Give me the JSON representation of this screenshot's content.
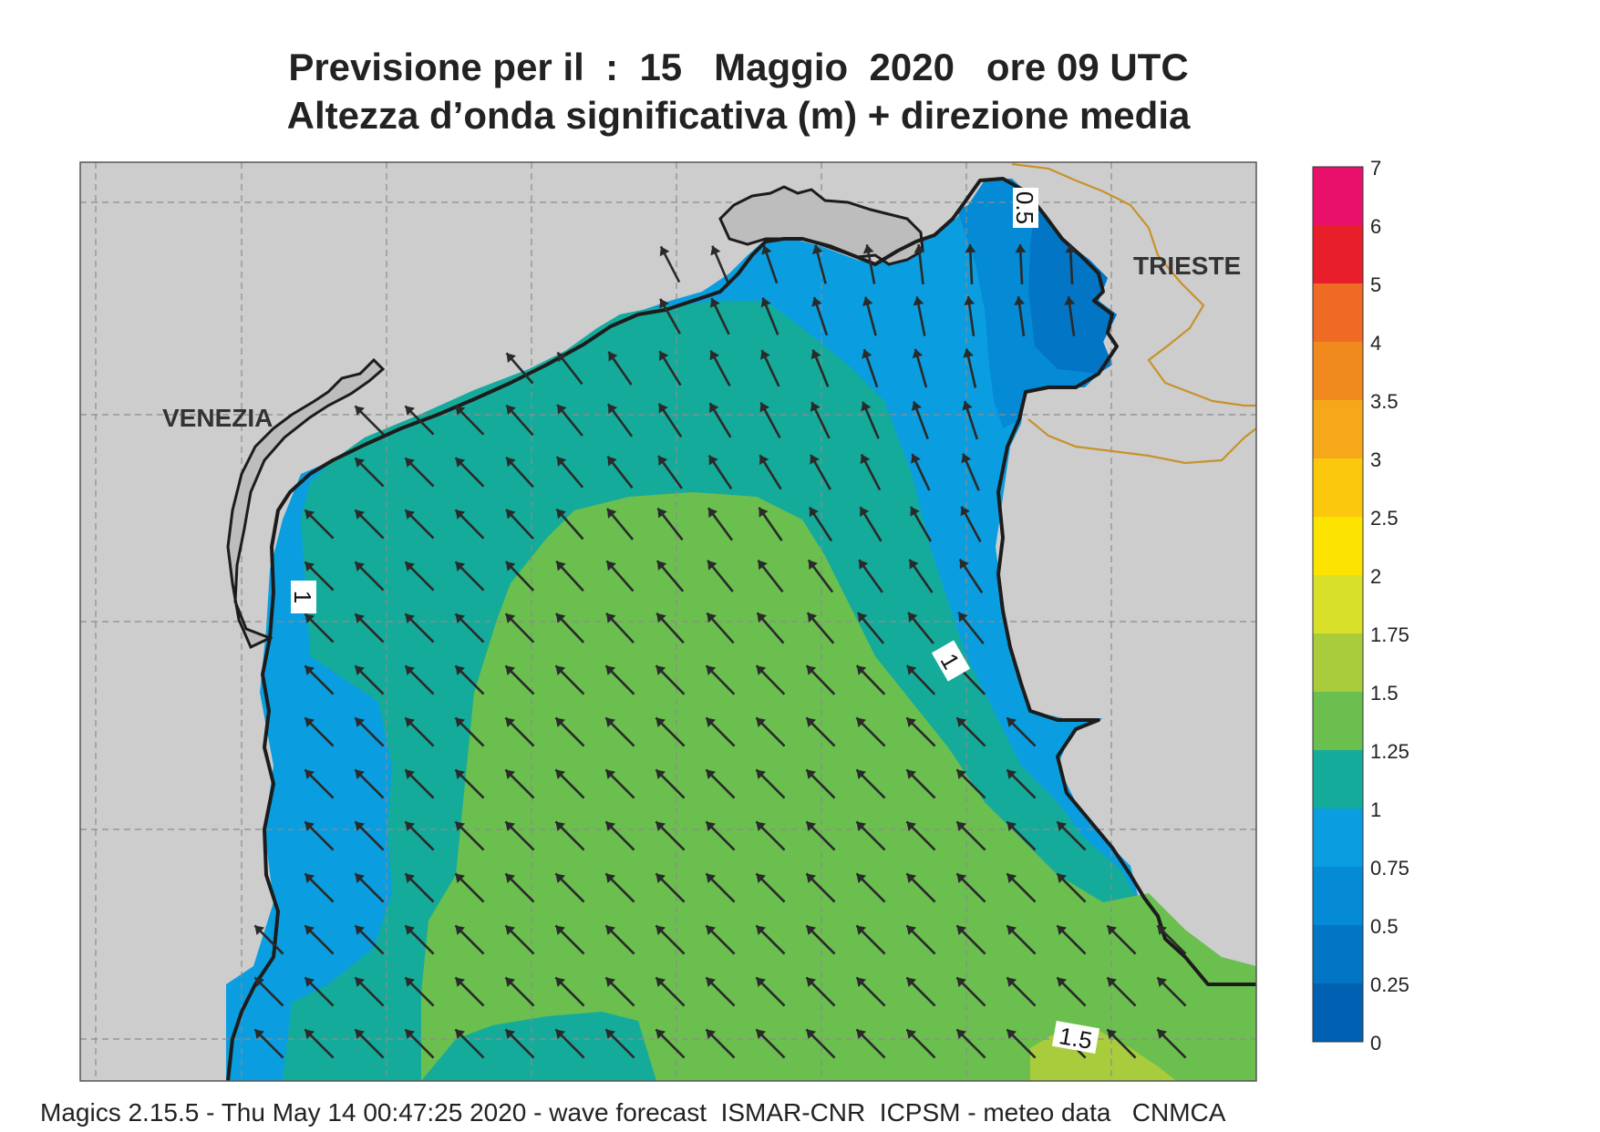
{
  "title": {
    "line1": "Previsione per il  :  15   Maggio  2020   ore 09 UTC",
    "line2": "Altezza d’onda significativa (m) + direzione media"
  },
  "places": {
    "venezia": "VENEZIA",
    "trieste": "TRIESTE"
  },
  "contour_labels": {
    "c05": "0.5",
    "c1_west": "1",
    "c1_east": "1",
    "c15": "1.5"
  },
  "legend": {
    "ticks": [
      "7",
      "6",
      "5",
      "4",
      "3.5",
      "3",
      "2.5",
      "2",
      "1.75",
      "1.5",
      "1.25",
      "1",
      "0.75",
      "0.5",
      "0.25",
      "0"
    ],
    "colors": [
      "#e8106a",
      "#e81f2b",
      "#ef6a23",
      "#f08a1f",
      "#f6a81a",
      "#fbc80e",
      "#fde400",
      "#d8e02a",
      "#a9cc3c",
      "#6bbf4f",
      "#15ab9b",
      "#0a9ee0",
      "#058ad6",
      "#0276c5",
      "#0060b2"
    ]
  },
  "colors": {
    "land": "#cdcdcd",
    "coast": "#1c1c1c",
    "border": "#c8922b",
    "grid": "#8c8c8c",
    "arrow": "#2a2a2a"
  },
  "footer": "Magics 2.15.5 - Thu May 14 00:47:25 2020 - wave forecast  ISMAR-CNR  ICPSM - meteo data   CNMCA"
}
